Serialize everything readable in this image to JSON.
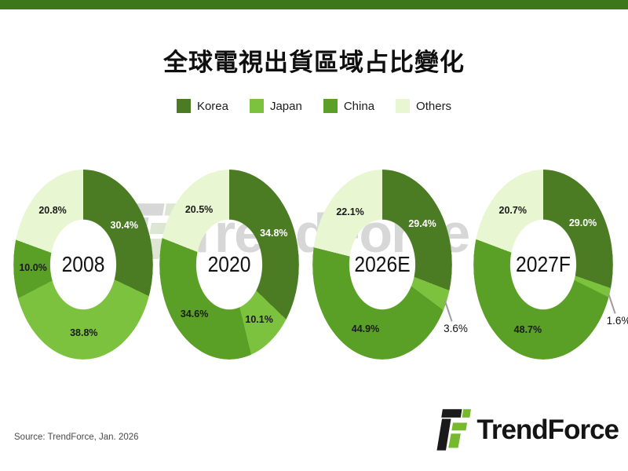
{
  "header": {
    "title": "全球電視出貨區域占比變化"
  },
  "watermark": {
    "text": "TrendForce"
  },
  "footer": {
    "source_note": "Source: TrendForce, Jan. 2026",
    "brand_text": "TrendForce"
  },
  "colors": {
    "top_bar": "#3e761b",
    "korea": "#4b7c24",
    "japan": "#7cc23f",
    "china": "#5ba026",
    "others": "#e9f6d2",
    "watermark_gray": "#d7d7d7",
    "logo_black": "#1a1a1a",
    "logo_green": "#76b82e",
    "leader_line": "#9c9c9c"
  },
  "chart_data": {
    "type": "pie",
    "subtype": "donut",
    "title": "全球電視出貨區域占比變化",
    "unit": "percent",
    "labels_format": "one_decimal_percent",
    "legend_position": "top",
    "clockwise_from_top": true,
    "legend": [
      {
        "label": "Korea",
        "color": "#4b7c24",
        "label_color": "#ffffff"
      },
      {
        "label": "Japan",
        "color": "#7cc23f",
        "label_color": "#1a1a1a"
      },
      {
        "label": "China",
        "color": "#5ba026",
        "label_color": "#1a1a1a"
      },
      {
        "label": "Others",
        "color": "#e9f6d2",
        "label_color": "#1a1a1a"
      }
    ],
    "charts": [
      {
        "year": "2008",
        "values": [
          30.4,
          38.8,
          10.0,
          20.8
        ]
      },
      {
        "year": "2020",
        "values": [
          34.8,
          10.1,
          34.6,
          20.5
        ]
      },
      {
        "year": "2026E",
        "values": [
          29.4,
          3.6,
          44.9,
          22.1
        ]
      },
      {
        "year": "2027F",
        "values": [
          29.0,
          1.6,
          48.7,
          20.7
        ]
      }
    ]
  }
}
